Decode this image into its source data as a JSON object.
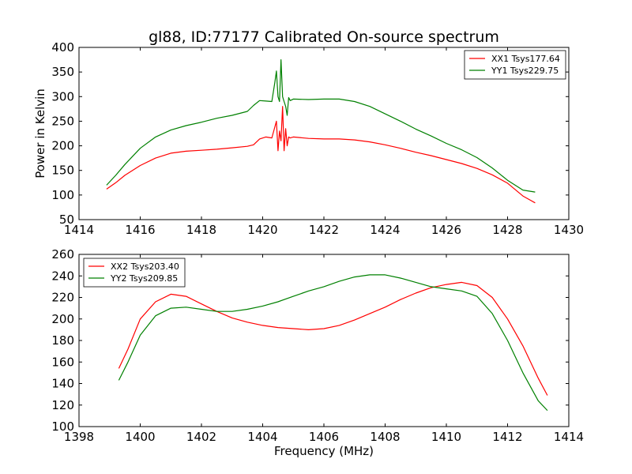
{
  "title": "gl88, ID:77177 Calibrated On-source spectrum",
  "chart_data": [
    {
      "type": "line",
      "ylabel": "Power in Kelvin",
      "xlabel": "",
      "xlim": [
        1414,
        1430
      ],
      "ylim": [
        50,
        400
      ],
      "xticks": [
        1414,
        1416,
        1418,
        1420,
        1422,
        1424,
        1426,
        1428,
        1430
      ],
      "yticks": [
        50,
        100,
        150,
        200,
        250,
        300,
        350,
        400
      ],
      "legend_position": "top-right",
      "series": [
        {
          "name": "XX1 Tsys177.64",
          "color": "#ff0000",
          "x": [
            1414.9,
            1415.2,
            1415.5,
            1416.0,
            1416.5,
            1417.0,
            1417.5,
            1418.0,
            1418.5,
            1419.0,
            1419.5,
            1419.7,
            1419.9,
            1420.1,
            1420.3,
            1420.45,
            1420.5,
            1420.55,
            1420.6,
            1420.65,
            1420.7,
            1420.75,
            1420.8,
            1420.85,
            1420.9,
            1421.0,
            1421.5,
            1422.0,
            1422.5,
            1423.0,
            1423.5,
            1424.0,
            1424.5,
            1425.0,
            1425.5,
            1426.0,
            1426.5,
            1427.0,
            1427.5,
            1428.0,
            1428.5,
            1428.9
          ],
          "y": [
            112,
            125,
            140,
            160,
            175,
            185,
            189,
            191,
            193,
            196,
            199,
            202,
            214,
            218,
            216,
            250,
            190,
            230,
            210,
            280,
            190,
            235,
            200,
            218,
            216,
            218,
            215,
            214,
            214,
            212,
            208,
            202,
            195,
            187,
            180,
            172,
            164,
            154,
            141,
            124,
            98,
            84
          ]
        },
        {
          "name": "YY1 Tsys229.75",
          "color": "#008000",
          "x": [
            1414.9,
            1415.2,
            1415.5,
            1416.0,
            1416.5,
            1417.0,
            1417.5,
            1418.0,
            1418.5,
            1419.0,
            1419.5,
            1419.7,
            1419.9,
            1420.1,
            1420.3,
            1420.4,
            1420.45,
            1420.5,
            1420.55,
            1420.6,
            1420.65,
            1420.7,
            1420.75,
            1420.8,
            1420.85,
            1420.9,
            1421.0,
            1421.5,
            1422.0,
            1422.5,
            1423.0,
            1423.5,
            1424.0,
            1424.5,
            1425.0,
            1425.5,
            1426.0,
            1426.5,
            1427.0,
            1427.5,
            1428.0,
            1428.5,
            1428.9
          ],
          "y": [
            120,
            140,
            162,
            195,
            218,
            232,
            241,
            248,
            256,
            262,
            270,
            282,
            292,
            291,
            290,
            330,
            352,
            300,
            290,
            375,
            300,
            290,
            280,
            262,
            298,
            292,
            295,
            294,
            295,
            295,
            290,
            280,
            265,
            250,
            234,
            220,
            205,
            192,
            176,
            155,
            130,
            110,
            106
          ]
        }
      ]
    },
    {
      "type": "line",
      "ylabel": "",
      "xlabel": "Frequency (MHz)",
      "xlim": [
        1398,
        1414
      ],
      "ylim": [
        100,
        260
      ],
      "xticks": [
        1398,
        1400,
        1402,
        1404,
        1406,
        1408,
        1410,
        1412,
        1414
      ],
      "yticks": [
        100,
        120,
        140,
        160,
        180,
        200,
        220,
        240,
        260
      ],
      "legend_position": "top-left",
      "series": [
        {
          "name": "XX2 Tsys203.40",
          "color": "#ff0000",
          "x": [
            1399.3,
            1399.6,
            1400.0,
            1400.5,
            1401.0,
            1401.5,
            1402.0,
            1402.5,
            1403.0,
            1403.5,
            1404.0,
            1404.5,
            1405.0,
            1405.5,
            1406.0,
            1406.5,
            1407.0,
            1407.5,
            1408.0,
            1408.5,
            1409.0,
            1409.5,
            1410.0,
            1410.5,
            1411.0,
            1411.5,
            1412.0,
            1412.5,
            1413.0,
            1413.3
          ],
          "y": [
            154,
            172,
            200,
            216,
            223,
            221,
            214,
            207,
            201,
            197,
            194,
            192,
            191,
            190,
            191,
            194,
            199,
            205,
            211,
            218,
            224,
            229,
            232,
            234,
            231,
            220,
            200,
            175,
            145,
            129
          ]
        },
        {
          "name": "YY2 Tsys209.85",
          "color": "#008000",
          "x": [
            1399.3,
            1399.6,
            1400.0,
            1400.5,
            1401.0,
            1401.5,
            1402.0,
            1402.5,
            1403.0,
            1403.5,
            1404.0,
            1404.5,
            1405.0,
            1405.5,
            1406.0,
            1406.5,
            1407.0,
            1407.5,
            1408.0,
            1408.5,
            1409.0,
            1409.5,
            1410.0,
            1410.5,
            1411.0,
            1411.5,
            1412.0,
            1412.5,
            1413.0,
            1413.3
          ],
          "y": [
            143,
            160,
            185,
            203,
            210,
            211,
            209,
            207,
            207,
            209,
            212,
            216,
            221,
            226,
            230,
            235,
            239,
            241,
            241,
            238,
            234,
            230,
            228,
            226,
            221,
            205,
            180,
            150,
            124,
            115
          ]
        }
      ]
    }
  ]
}
